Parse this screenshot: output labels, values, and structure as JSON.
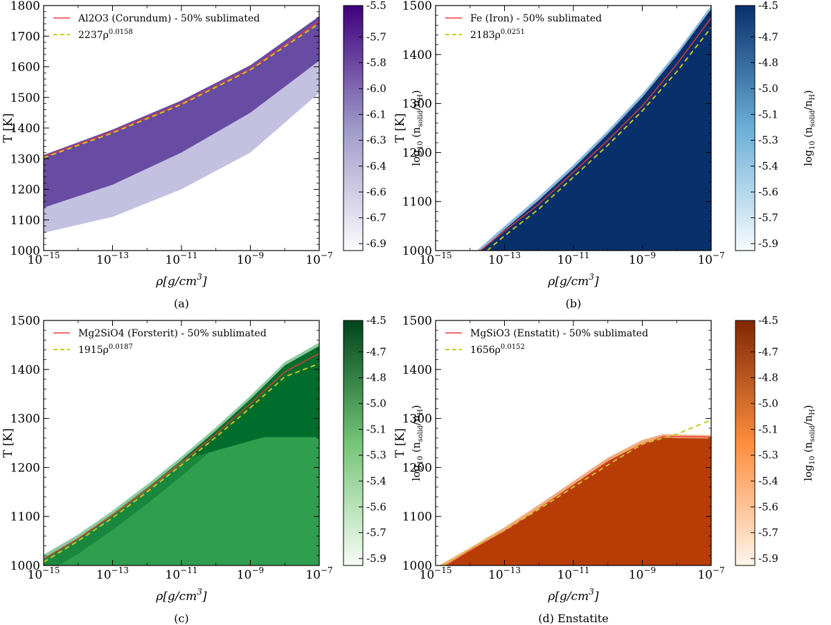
{
  "figure": {
    "x_axis_label_main": "ρ[g/cm",
    "x_axis_label_sup": "3",
    "x_axis_label_end": "]",
    "y_axis_label": "T [K]",
    "colorbar_label_prefix": "log",
    "colorbar_label_sub10": "10",
    "colorbar_label_open": " (n",
    "colorbar_label_sub_solid": "solid",
    "colorbar_label_mid": "/n",
    "colorbar_label_sub_h": "H",
    "colorbar_label_close": ")"
  },
  "chart_data": [
    {
      "type": "heatmap",
      "caption": "(a)",
      "series": [
        {
          "name": "Al2O3 (Corundum) - 50% sublimated",
          "style": "solid",
          "color": "#e83a3a",
          "x_log10": [
            -15,
            -13,
            -11,
            -9,
            -7
          ],
          "y": [
            1306,
            1388,
            1480,
            1593,
            1748
          ]
        },
        {
          "name": "2237ρ^0.0158",
          "label_coef": "2237ρ",
          "label_exp": "0.0158",
          "style": "dashed",
          "color": "#c8c820",
          "x_log10": [
            -15,
            -13,
            -11,
            -9,
            -7
          ],
          "y": [
            1303,
            1384,
            1477,
            1590,
            1742
          ]
        }
      ],
      "region": {
        "upper_T": [
          1312,
          1395,
          1490,
          1605,
          1765
        ],
        "dark_lower_T": [
          1140,
          1215,
          1320,
          1450,
          1620
        ],
        "outer_lower_T": [
          1058,
          1110,
          1200,
          1320,
          1515
        ]
      },
      "xlim_log10": [
        -15,
        -7
      ],
      "x_ticks": [
        "10",
        "10",
        "10",
        "10",
        "10"
      ],
      "x_tick_exps": [
        "−15",
        "−13",
        "−11",
        "−9",
        "−7"
      ],
      "x_tick_values_log10": [
        -15,
        -13,
        -11,
        -9,
        -7
      ],
      "ylim": [
        1000,
        1800
      ],
      "y_ticks": [
        "1000",
        "1100",
        "1200",
        "1300",
        "1400",
        "1500",
        "1600",
        "1700",
        "1800"
      ],
      "colorbar": {
        "ticks": [
          "-5.5",
          "-5.7",
          "-5.8",
          "-6.0",
          "-6.1",
          "-6.3",
          "-6.4",
          "-6.6",
          "-6.7",
          "-6.9"
        ],
        "color_low": "#fcfbfd",
        "color_high": "#3f007d"
      },
      "fill_dark": "#5e3f9c",
      "fill_light": "#b8b5da"
    },
    {
      "type": "heatmap",
      "caption": "(b)",
      "series": [
        {
          "name": "Fe (Iron) - 50% sublimated",
          "style": "solid",
          "color": "#e83a3a",
          "x_log10": [
            -13.7,
            -13,
            -12,
            -11,
            -10,
            -9,
            -8,
            -7
          ],
          "y": [
            1000,
            1040,
            1095,
            1160,
            1225,
            1295,
            1380,
            1475
          ]
        },
        {
          "name": "2183ρ^0.0251",
          "label_coef": "2183ρ",
          "label_exp": "0.0251",
          "style": "dashed",
          "color": "#c8c820",
          "x_log10": [
            -13.5,
            -13,
            -12,
            -11,
            -10,
            -9,
            -8,
            -7
          ],
          "y": [
            1000,
            1030,
            1085,
            1150,
            1215,
            1285,
            1365,
            1455
          ]
        }
      ],
      "region": {
        "upper_x_log10": [
          -13.8,
          -13,
          -12,
          -11,
          -10,
          -9,
          -8,
          -7
        ],
        "upper_T": [
          1000,
          1050,
          1110,
          1175,
          1245,
          1320,
          1405,
          1500
        ]
      },
      "xlim_log10": [
        -15,
        -7
      ],
      "x_ticks": [
        "10",
        "10",
        "10",
        "10",
        "10"
      ],
      "x_tick_exps": [
        "−15",
        "−13",
        "−11",
        "−9",
        "−7"
      ],
      "x_tick_values_log10": [
        -15,
        -13,
        -11,
        -9,
        -7
      ],
      "ylim": [
        1000,
        1500
      ],
      "y_ticks": [
        "1000",
        "1100",
        "1200",
        "1300",
        "1400",
        "1500"
      ],
      "colorbar": {
        "ticks": [
          "-4.5",
          "-4.7",
          "-4.8",
          "-5.0",
          "-5.1",
          "-5.3",
          "-5.4",
          "-5.6",
          "-5.7",
          "-5.9"
        ],
        "color_low": "#f7fbff",
        "color_high": "#08306b"
      },
      "fill_dark": "#08306b",
      "fill_light": "#2f7bbf"
    },
    {
      "type": "heatmap",
      "caption": "(c)",
      "series": [
        {
          "name": "Mg2SiO4 (Forsterit) - 50% sublimated",
          "style": "solid",
          "color": "#e83a3a",
          "x_log10": [
            -15,
            -14,
            -13,
            -12,
            -11,
            -10,
            -9,
            -8,
            -7
          ],
          "y": [
            1013,
            1055,
            1103,
            1155,
            1210,
            1268,
            1330,
            1395,
            1433
          ]
        },
        {
          "name": "1915ρ^0.0187",
          "label_coef": "1915ρ",
          "label_exp": "0.0187",
          "style": "dashed",
          "color": "#c8c820",
          "x_log10": [
            -15,
            -14,
            -13,
            -12,
            -11,
            -10,
            -9,
            -8,
            -7
          ],
          "y": [
            1007,
            1050,
            1097,
            1150,
            1205,
            1262,
            1322,
            1385,
            1412
          ]
        }
      ],
      "region": {
        "upper_x_log10": [
          -15,
          -14,
          -13,
          -12,
          -11,
          -10,
          -9,
          -8,
          -7
        ],
        "upper_T": [
          1022,
          1063,
          1112,
          1165,
          1222,
          1282,
          1346,
          1415,
          1455
        ],
        "plateau_T": 1262,
        "plateau_start_log10": -8.6
      },
      "xlim_log10": [
        -15,
        -7
      ],
      "x_ticks": [
        "10",
        "10",
        "10",
        "10",
        "10"
      ],
      "x_tick_exps": [
        "−15",
        "−13",
        "−11",
        "−9",
        "−7"
      ],
      "x_tick_values_log10": [
        -15,
        -13,
        -11,
        -9,
        -7
      ],
      "ylim": [
        1000,
        1500
      ],
      "y_ticks": [
        "1000",
        "1100",
        "1200",
        "1300",
        "1400",
        "1500"
      ],
      "colorbar": {
        "ticks": [
          "-4.5",
          "-4.7",
          "-4.8",
          "-5.0",
          "-5.1",
          "-5.3",
          "-5.4",
          "-5.6",
          "-5.7",
          "-5.9"
        ],
        "color_low": "#f7fcf5",
        "color_high": "#00441b"
      },
      "fill_dark": "#006d2c",
      "fill_light": "#2f9e4e"
    },
    {
      "type": "heatmap",
      "caption": "(d) Enstatite",
      "series": [
        {
          "name": "MgSiO3 (Enstatit) - 50% sublimated",
          "style": "solid",
          "color": "#e83a3a",
          "x_log10": [
            -14.7,
            -14,
            -13,
            -12,
            -11,
            -10,
            -9,
            -8.4,
            -8,
            -7
          ],
          "y": [
            1000,
            1030,
            1070,
            1115,
            1162,
            1210,
            1245,
            1263,
            1263,
            1262
          ]
        },
        {
          "name": "1656ρ^0.0152",
          "label_coef": "1656ρ",
          "label_exp": "0.0152",
          "style": "dashed",
          "color": "#c8c820",
          "x_log10": [
            -14.8,
            -14,
            -13,
            -12,
            -11,
            -10,
            -9,
            -8,
            -7
          ],
          "y": [
            1000,
            1033,
            1072,
            1115,
            1160,
            1205,
            1248,
            1268,
            1297
          ]
        }
      ],
      "region": {
        "upper_x_log10": [
          -14.9,
          -14,
          -13,
          -12,
          -11,
          -10,
          -9,
          -8.4,
          -8,
          -7
        ],
        "upper_T": [
          1000,
          1036,
          1078,
          1124,
          1172,
          1220,
          1256,
          1268,
          1267,
          1266
        ]
      },
      "xlim_log10": [
        -15,
        -7
      ],
      "x_ticks": [
        "10",
        "10",
        "10",
        "10",
        "10"
      ],
      "x_tick_exps": [
        "−15",
        "−13",
        "−11",
        "−9",
        "−7"
      ],
      "x_tick_values_log10": [
        -15,
        -13,
        -11,
        -9,
        -7
      ],
      "ylim": [
        1000,
        1500
      ],
      "y_ticks": [
        "1000",
        "1100",
        "1200",
        "1300",
        "1400",
        "1500"
      ],
      "colorbar": {
        "ticks": [
          "-4.5",
          "-4.7",
          "-4.8",
          "-5.0",
          "-5.1",
          "-5.3",
          "-5.4",
          "-5.6",
          "-5.7",
          "-5.9"
        ],
        "color_low": "#fff5eb",
        "color_high": "#7f2704"
      },
      "fill_dark": "#b73c05",
      "fill_light": "#e8650d"
    }
  ]
}
